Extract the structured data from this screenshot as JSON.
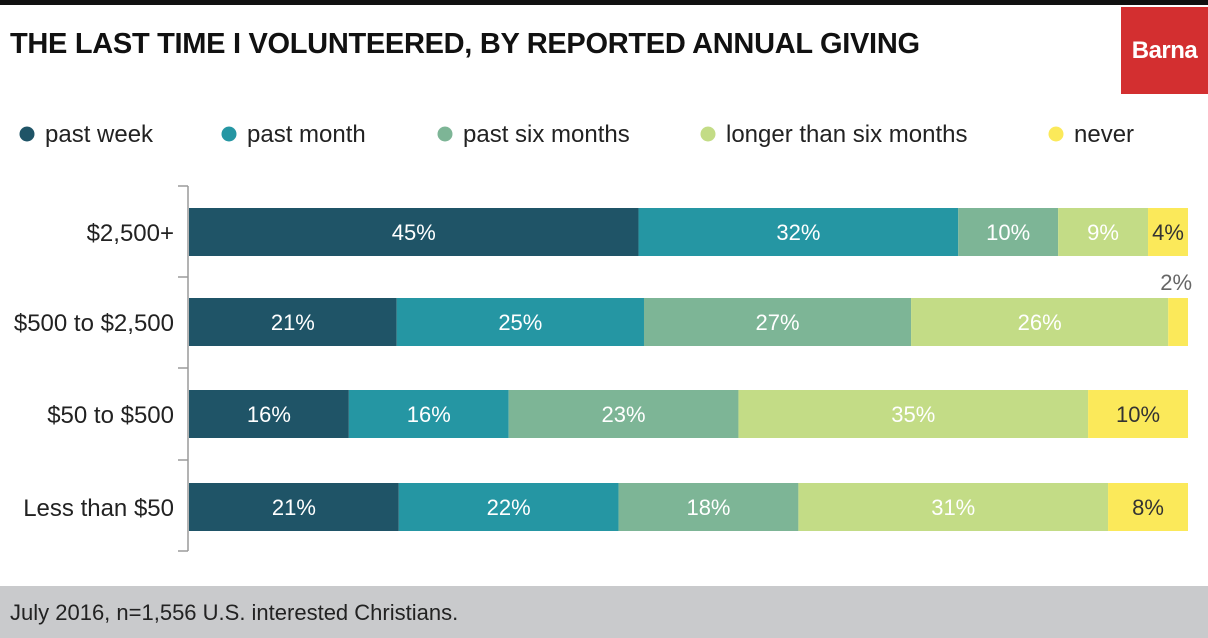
{
  "title": "THE LAST TIME I VOLUNTEERED, BY REPORTED ANNUAL GIVING",
  "brand": "Barna",
  "footer": "July 2016, n=1,556 U.S. interested Christians.",
  "colors": {
    "brand": "#d32f30",
    "past_week": "#1f5467",
    "past_month": "#2596a3",
    "past_six_months": "#7db596",
    "longer_than_six_months": "#c3dc86",
    "never": "#fbe95a"
  },
  "chart_data": {
    "type": "bar",
    "orientation": "horizontal",
    "stacked": true,
    "legend_position": "top",
    "xlim": [
      0,
      100
    ],
    "unit": "%",
    "categories": [
      "$2,500+",
      "$500 to $2,500",
      "$50 to $500",
      "Less than $50"
    ],
    "series": [
      {
        "name": "past week",
        "color": "#1f5467",
        "values": [
          45,
          21,
          16,
          21
        ]
      },
      {
        "name": "past month",
        "color": "#2596a3",
        "values": [
          32,
          25,
          16,
          22
        ]
      },
      {
        "name": "past six months",
        "color": "#7db596",
        "values": [
          10,
          27,
          23,
          18
        ]
      },
      {
        "name": "longer than six months",
        "color": "#c3dc86",
        "values": [
          9,
          26,
          35,
          31
        ]
      },
      {
        "name": "never",
        "color": "#fbe95a",
        "values": [
          4,
          2,
          10,
          8
        ]
      }
    ]
  }
}
